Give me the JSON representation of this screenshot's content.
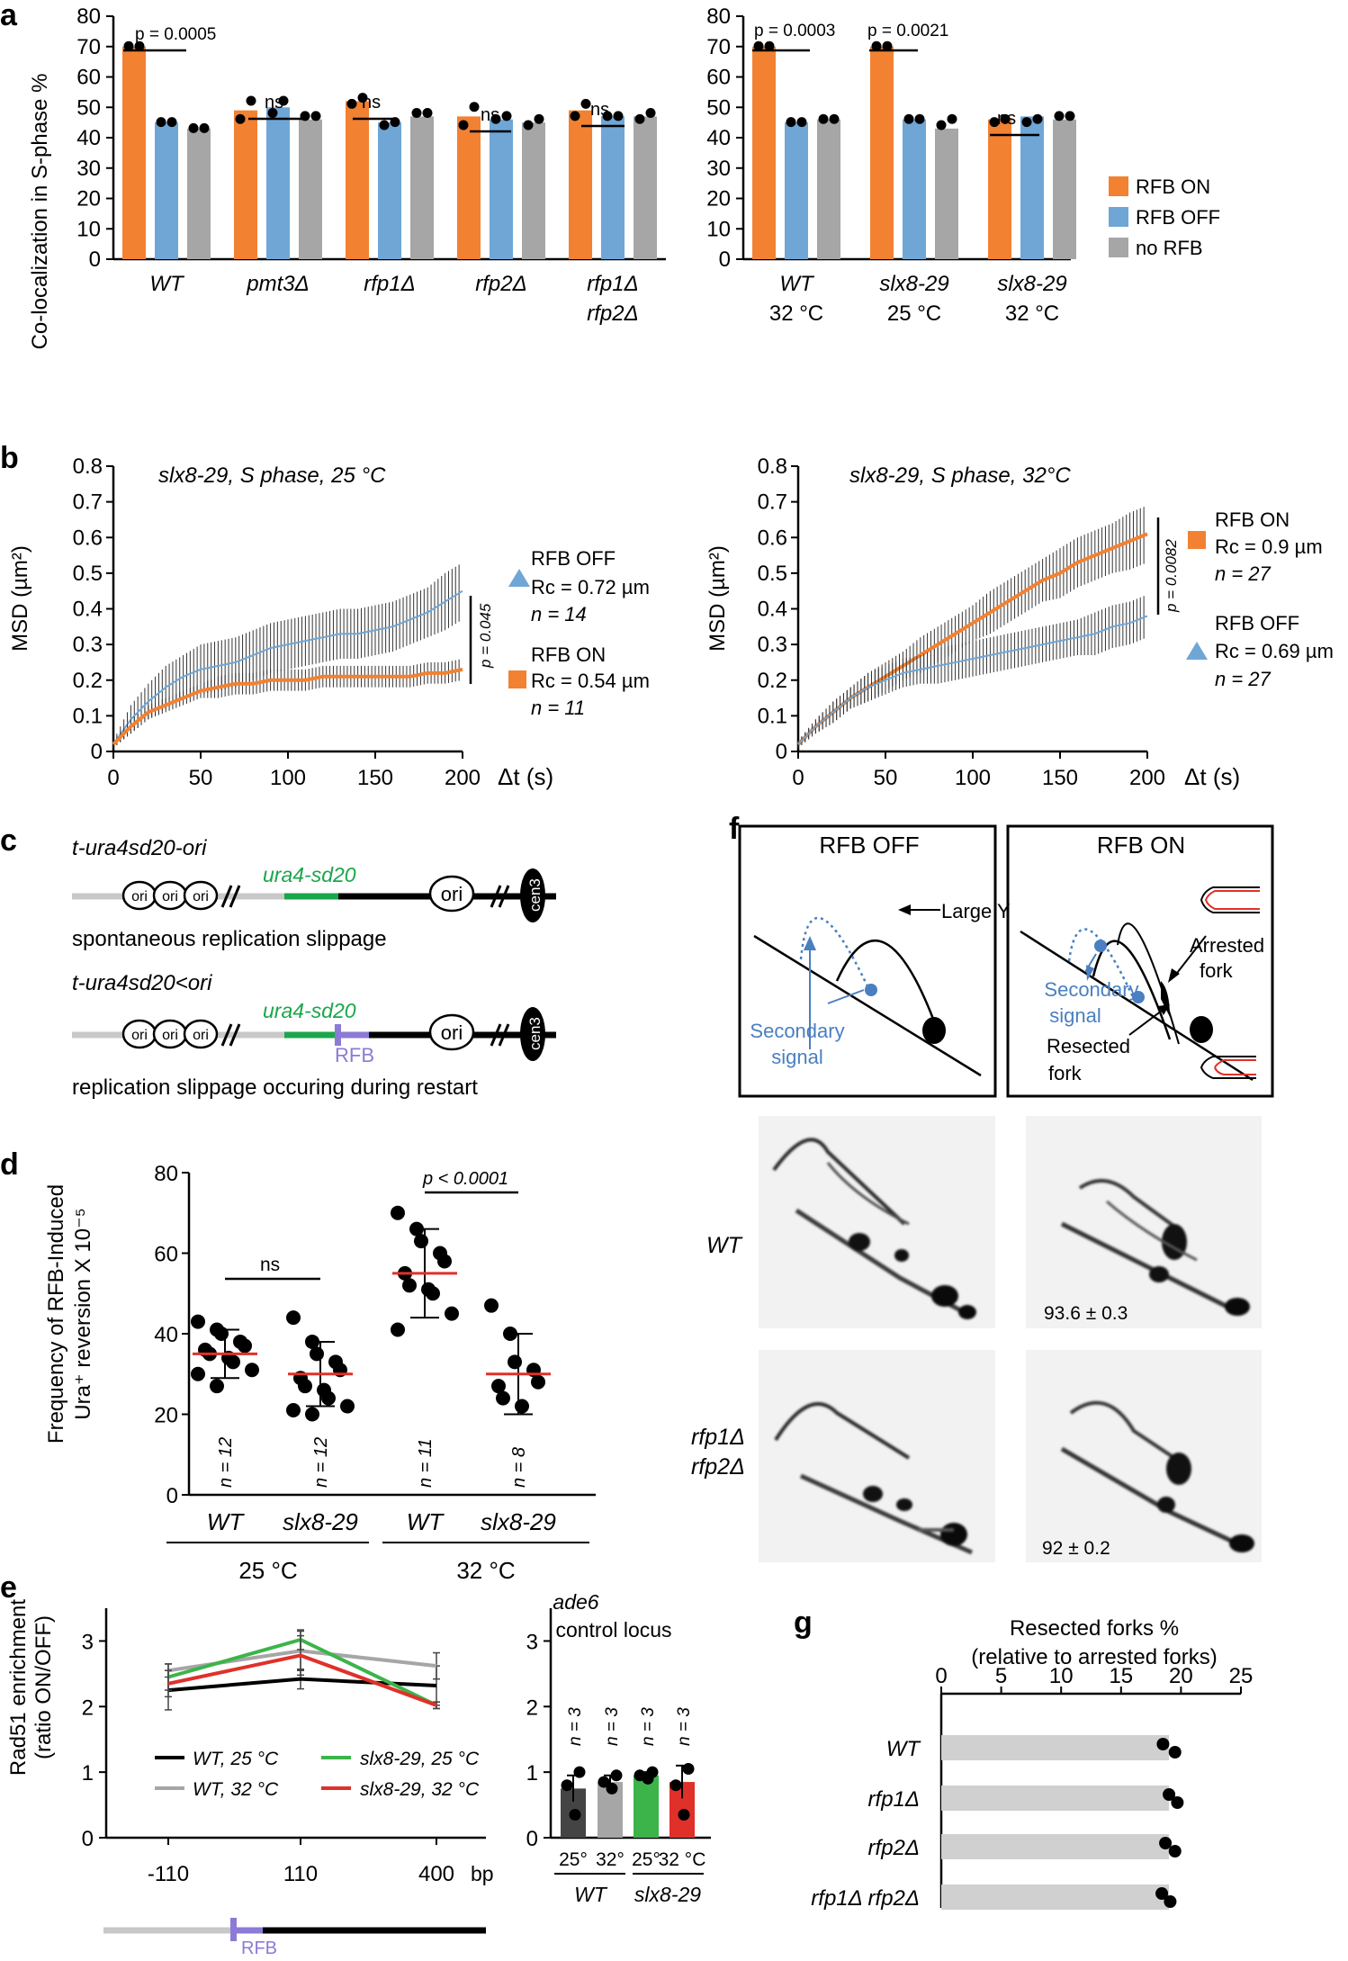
{
  "colors": {
    "on": "#f28132",
    "off": "#6fa6d6",
    "none": "#a6a6a6",
    "red": "#e0302a",
    "green": "#3cb44a",
    "purple": "#8c7ad6",
    "seq_green": "#1aa64a",
    "blue": "#4a7fc1",
    "black": "#000000"
  },
  "panel_labels": {
    "a": "a",
    "b": "b",
    "c": "c",
    "d": "d",
    "e": "e",
    "f": "f",
    "g": "g"
  },
  "a": {
    "ylabel": "Co-localization in S-phase %",
    "legend": [
      {
        "name": "RFB ON",
        "color": "#f28132"
      },
      {
        "name": "RFB OFF",
        "color": "#6fa6d6"
      },
      {
        "name": "no RFB",
        "color": "#a6a6a6"
      }
    ],
    "left_ticks": [
      "0",
      "10",
      "20",
      "30",
      "40",
      "50",
      "60",
      "70",
      "80"
    ],
    "right_ticks": [
      "0",
      "10",
      "20",
      "30",
      "40",
      "50",
      "60",
      "70",
      "80"
    ],
    "pvals": {
      "wt": "p = 0.0005",
      "wt32": "p = 0.0003",
      "slx25": "p = 0.0021"
    },
    "ns": "ns",
    "left_groups": [
      [
        "WT"
      ],
      [
        "pmt3Δ"
      ],
      [
        "rfp1Δ"
      ],
      [
        "rfp2Δ"
      ],
      [
        "rfp1Δ",
        "rfp2Δ"
      ]
    ],
    "right_groups": [
      [
        "WT",
        "32 °C"
      ],
      [
        "slx8-29",
        "25 °C"
      ],
      [
        "slx8-29",
        "32 °C"
      ]
    ]
  },
  "b": {
    "left": {
      "title": "slx8-29, S phase, 25 °C",
      "ylabel": "MSD (µm²)",
      "xlabel": "Δt (s)",
      "yticks": [
        "0",
        "0.1",
        "0.2",
        "0.3",
        "0.4",
        "0.5",
        "0.6",
        "0.7",
        "0.8"
      ],
      "xticks": [
        "0",
        "50",
        "100",
        "150",
        "200"
      ],
      "pval": "p = 0.045",
      "legend": [
        [
          "RFB OFF",
          "Rc = 0.72 µm",
          "n = 14"
        ],
        [
          "RFB ON",
          "Rc = 0.54 µm",
          "n = 11"
        ]
      ]
    },
    "right": {
      "title": "slx8-29, S phase, 32°C",
      "ylabel": "MSD (µm²)",
      "xlabel": "Δt (s)",
      "yticks": [
        "0",
        "0.1",
        "0.2",
        "0.3",
        "0.4",
        "0.5",
        "0.6",
        "0.7",
        "0.8"
      ],
      "xticks": [
        "0",
        "50",
        "100",
        "150",
        "200"
      ],
      "pval": "p = 0.0082",
      "legend": [
        [
          "RFB ON",
          "Rc = 0.9 µm",
          "n = 27"
        ],
        [
          "RFB OFF",
          "Rc = 0.69 µm",
          "n = 27"
        ]
      ]
    }
  },
  "c": {
    "construct1": "t-ura4sd20-ori",
    "construct2": "t-ura4sd20<ori",
    "gene": "ura4-sd20",
    "ori": "ori",
    "cen": "cen3",
    "rfb": "RFB",
    "caption1": "spontaneous replication slippage",
    "caption2": "replication slippage occuring during restart"
  },
  "d": {
    "ylabel1": "Frequency of RFB-Induced",
    "ylabel2": "Ura⁺ reversion X 10⁻⁵",
    "yticks": [
      "0",
      "20",
      "40",
      "60",
      "80"
    ],
    "ns": "ns",
    "pval": "p < 0.0001",
    "groups": [
      "WT",
      "slx8-29",
      "WT",
      "slx8-29"
    ],
    "ns_counts": [
      "n = 12",
      "n = 12",
      "n = 11",
      "n = 8"
    ],
    "temps": [
      "25 °C",
      "32 °C"
    ]
  },
  "e": {
    "ylabel1": "Rad51 enrichment",
    "ylabel2": "(ratio ON/OFF)",
    "yticks": [
      "0",
      "1",
      "2",
      "3"
    ],
    "xticks": [
      "-110",
      "110",
      "400"
    ],
    "xunit": "bp",
    "rfb": "RFB",
    "legend": [
      [
        "WT, 25 °C",
        "#000000"
      ],
      [
        "WT, 32 °C",
        "#a6a6a6"
      ],
      [
        "slx8-29, 25 °C",
        "#3cb44a"
      ],
      [
        "slx8-29, 32 °C",
        "#e0302a"
      ]
    ],
    "ctrl_title1": "ade6",
    "ctrl_title2": "control locus",
    "ctrl_n": "n = 3",
    "ctrl_temps": [
      "25°",
      "32°",
      "25°",
      "32 °C"
    ],
    "ctrl_groups": [
      "WT",
      "slx8-29"
    ]
  },
  "f": {
    "off_title": "RFB OFF",
    "on_title": "RFB ON",
    "large_y": "Large Y",
    "secondary": [
      "Secondary",
      "signal"
    ],
    "arrested": [
      "Arrested",
      "fork"
    ],
    "resected": [
      "Resected",
      "fork"
    ],
    "row1": "WT",
    "row2": [
      "rfp1Δ",
      "rfp2Δ"
    ],
    "val1": "93.6 ± 0.3",
    "val2": "92 ± 0.2"
  },
  "g": {
    "title1": "Resected forks %",
    "title2": "(relative to arrested forks)",
    "xticks": [
      "0",
      "5",
      "10",
      "15",
      "20",
      "25"
    ],
    "rows": [
      "WT",
      "rfp1Δ",
      "rfp2Δ",
      "rfp1Δ rfp2Δ"
    ]
  },
  "chart_data": [
    {
      "type": "bar",
      "panel": "a-left",
      "ylim": [
        0,
        80
      ],
      "ylabel": "Co-localization in S-phase %",
      "categories": [
        "WT",
        "pmt3Δ",
        "rfp1Δ",
        "rfp2Δ",
        "rfp1Δ rfp2Δ"
      ],
      "series": [
        {
          "name": "RFB ON",
          "values": [
            70,
            49,
            52,
            47,
            49
          ],
          "points": [
            [
              70,
              70
            ],
            [
              46,
              52
            ],
            [
              51,
              53
            ],
            [
              44,
              50
            ],
            [
              47,
              51
            ]
          ]
        },
        {
          "name": "RFB OFF",
          "values": [
            45,
            50,
            45,
            46,
            47
          ],
          "points": [
            [
              45,
              45
            ],
            [
              48,
              52
            ],
            [
              44,
              45
            ],
            [
              46,
              47
            ],
            [
              47,
              47
            ]
          ]
        },
        {
          "name": "no RFB",
          "values": [
            43,
            46,
            47,
            45,
            47
          ],
          "points": [
            [
              43,
              43
            ],
            [
              47,
              47
            ],
            [
              48,
              48
            ],
            [
              44,
              46
            ],
            [
              46,
              48
            ]
          ]
        }
      ]
    },
    {
      "type": "bar",
      "panel": "a-right",
      "ylim": [
        0,
        80
      ],
      "categories": [
        "WT 32 °C",
        "slx8-29 25 °C",
        "slx8-29 32 °C"
      ],
      "series": [
        {
          "name": "RFB ON",
          "values": [
            70,
            70,
            46
          ],
          "points": [
            [
              70,
              70
            ],
            [
              70,
              70
            ],
            [
              45,
              46
            ]
          ]
        },
        {
          "name": "RFB OFF",
          "values": [
            45,
            46,
            47
          ],
          "points": [
            [
              45,
              45
            ],
            [
              46,
              46
            ],
            [
              45,
              46
            ]
          ]
        },
        {
          "name": "no RFB",
          "values": [
            46,
            43,
            46
          ],
          "points": [
            [
              46,
              46
            ],
            [
              44,
              46
            ],
            [
              47,
              47
            ]
          ]
        }
      ]
    },
    {
      "type": "line",
      "panel": "b-left",
      "xlim": [
        0,
        200
      ],
      "ylim": [
        0,
        0.8
      ],
      "xlabel": "Δt (s)",
      "ylabel": "MSD (µm²)",
      "x": [
        0,
        10,
        20,
        30,
        40,
        50,
        60,
        70,
        80,
        90,
        100,
        110,
        120,
        130,
        140,
        150,
        160,
        170,
        180,
        190,
        200
      ],
      "series": [
        {
          "name": "RFB OFF",
          "mean": [
            0.02,
            0.09,
            0.14,
            0.18,
            0.21,
            0.23,
            0.24,
            0.25,
            0.27,
            0.29,
            0.3,
            0.31,
            0.32,
            0.33,
            0.33,
            0.34,
            0.35,
            0.37,
            0.39,
            0.42,
            0.45
          ],
          "err": [
            0.01,
            0.04,
            0.05,
            0.06,
            0.06,
            0.07,
            0.07,
            0.07,
            0.07,
            0.07,
            0.07,
            0.07,
            0.07,
            0.07,
            0.07,
            0.07,
            0.07,
            0.07,
            0.07,
            0.08,
            0.08
          ]
        },
        {
          "name": "RFB ON",
          "mean": [
            0.02,
            0.07,
            0.11,
            0.13,
            0.15,
            0.17,
            0.18,
            0.19,
            0.19,
            0.2,
            0.2,
            0.2,
            0.21,
            0.21,
            0.21,
            0.21,
            0.21,
            0.21,
            0.22,
            0.22,
            0.23
          ],
          "err": [
            0.01,
            0.02,
            0.02,
            0.02,
            0.02,
            0.02,
            0.03,
            0.03,
            0.03,
            0.03,
            0.03,
            0.03,
            0.03,
            0.03,
            0.03,
            0.03,
            0.03,
            0.03,
            0.03,
            0.03,
            0.03
          ]
        }
      ]
    },
    {
      "type": "line",
      "panel": "b-right",
      "xlim": [
        0,
        200
      ],
      "ylim": [
        0,
        0.8
      ],
      "xlabel": "Δt (s)",
      "ylabel": "MSD (µm²)",
      "x": [
        0,
        10,
        20,
        30,
        40,
        50,
        60,
        70,
        80,
        90,
        100,
        110,
        120,
        130,
        140,
        150,
        160,
        170,
        180,
        190,
        200
      ],
      "series": [
        {
          "name": "RFB ON",
          "mean": [
            0.02,
            0.07,
            0.11,
            0.15,
            0.18,
            0.21,
            0.24,
            0.27,
            0.3,
            0.33,
            0.36,
            0.39,
            0.42,
            0.45,
            0.48,
            0.5,
            0.53,
            0.55,
            0.57,
            0.59,
            0.61
          ],
          "err": [
            0.01,
            0.02,
            0.03,
            0.03,
            0.04,
            0.04,
            0.04,
            0.05,
            0.05,
            0.05,
            0.05,
            0.06,
            0.06,
            0.06,
            0.06,
            0.07,
            0.07,
            0.07,
            0.07,
            0.08,
            0.08
          ]
        },
        {
          "name": "RFB OFF",
          "mean": [
            0.02,
            0.07,
            0.11,
            0.15,
            0.18,
            0.2,
            0.22,
            0.23,
            0.24,
            0.25,
            0.26,
            0.27,
            0.28,
            0.29,
            0.3,
            0.31,
            0.32,
            0.33,
            0.35,
            0.36,
            0.38
          ],
          "err": [
            0.01,
            0.02,
            0.03,
            0.03,
            0.04,
            0.04,
            0.04,
            0.04,
            0.05,
            0.05,
            0.05,
            0.05,
            0.05,
            0.05,
            0.05,
            0.05,
            0.05,
            0.06,
            0.06,
            0.06,
            0.06
          ]
        }
      ]
    },
    {
      "type": "scatter",
      "panel": "d",
      "ylim": [
        0,
        80
      ],
      "ylabel": "Frequency of RFB-Induced Ura⁺ reversion X 10⁻⁵",
      "categories": [
        "WT 25 °C",
        "slx8-29 25 °C",
        "WT 32 °C",
        "slx8-29 32 °C"
      ],
      "means": [
        35,
        30,
        55,
        30
      ],
      "sd": [
        6,
        8,
        11,
        10
      ],
      "points": [
        [
          43,
          41,
          40,
          38,
          37,
          36,
          35,
          34,
          33,
          31,
          30,
          27
        ],
        [
          44,
          38,
          35,
          33,
          31,
          29,
          27,
          26,
          24,
          22,
          21,
          20
        ],
        [
          70,
          66,
          63,
          60,
          58,
          55,
          52,
          51,
          50,
          45,
          41
        ],
        [
          47,
          40,
          33,
          31,
          28,
          27,
          24,
          22
        ]
      ]
    },
    {
      "type": "line",
      "panel": "e-left",
      "ylim": [
        0,
        3.5
      ],
      "ylabel": "Rad51 enrichment (ratio ON/OFF)",
      "x": [
        "-110",
        "110",
        "400"
      ],
      "series": [
        {
          "name": "WT, 25 °C",
          "values": [
            2.25,
            2.42,
            2.32
          ],
          "err": [
            0.3,
            0.15,
            0.3
          ]
        },
        {
          "name": "WT, 32 °C",
          "values": [
            2.55,
            2.85,
            2.62
          ],
          "err": [
            0.1,
            0.3,
            0.2
          ]
        },
        {
          "name": "slx8-29, 25 °C",
          "values": [
            2.45,
            3.02,
            2.02
          ],
          "err": [
            0.2,
            0.15,
            0.05
          ]
        },
        {
          "name": "slx8-29, 32 °C",
          "values": [
            2.35,
            2.78,
            2.02
          ],
          "err": [
            0.2,
            0.3,
            0.05
          ]
        }
      ]
    },
    {
      "type": "bar",
      "panel": "e-right",
      "ylim": [
        0,
        3.5
      ],
      "categories": [
        "WT 25°",
        "WT 32°",
        "slx8-29 25°",
        "slx8-29 32 °C"
      ],
      "values": [
        0.75,
        0.85,
        0.95,
        0.85
      ],
      "err": [
        0.2,
        0.1,
        0.05,
        0.25
      ],
      "points": [
        [
          1.0,
          0.8,
          0.35
        ],
        [
          0.95,
          0.85,
          0.75
        ],
        [
          1.0,
          0.95,
          0.9
        ],
        [
          1.05,
          0.8,
          0.35
        ]
      ]
    },
    {
      "type": "bar",
      "panel": "g",
      "orientation": "horizontal",
      "xlim": [
        0,
        25
      ],
      "categories": [
        "WT",
        "rfp1Δ",
        "rfp2Δ",
        "rfp1Δ rfp2Δ"
      ],
      "values": [
        19,
        19,
        19,
        19
      ],
      "points": [
        [
          18.5,
          19.5
        ],
        [
          19.0,
          19.7
        ],
        [
          18.7,
          19.5
        ],
        [
          18.4,
          19.1
        ]
      ]
    }
  ]
}
